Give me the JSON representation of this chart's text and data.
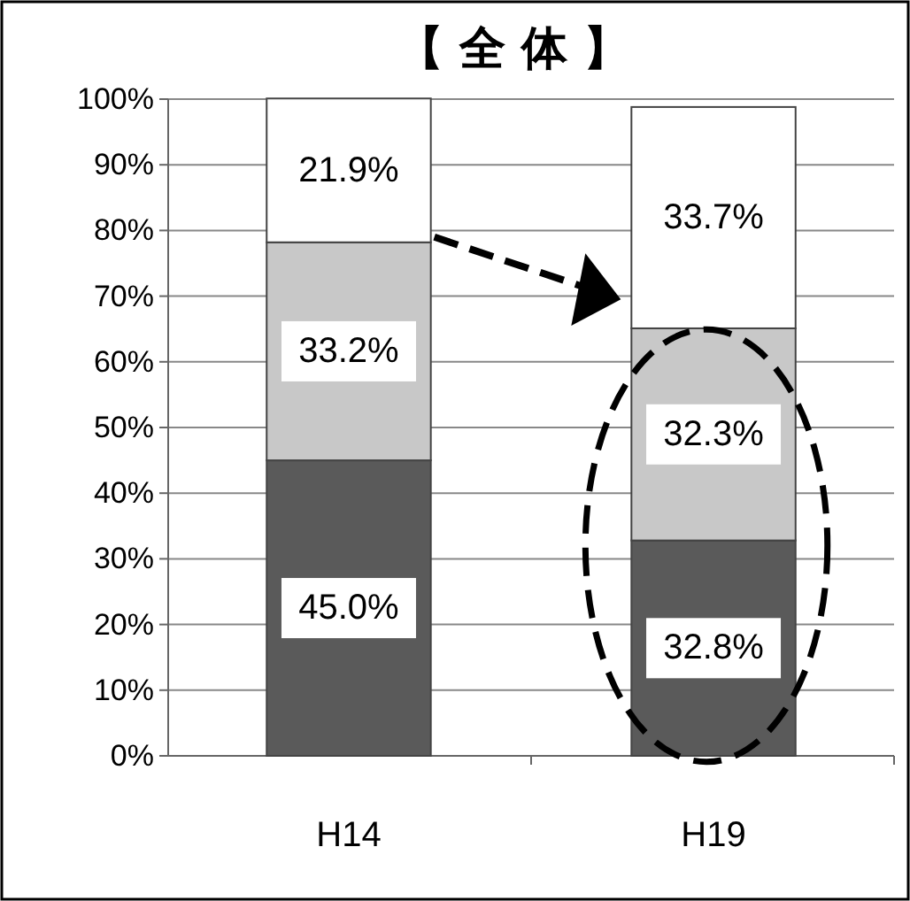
{
  "chart_data": {
    "type": "bar",
    "title": "【 全 体 】",
    "categories": [
      "H14",
      "H19"
    ],
    "stacked": true,
    "series": [
      {
        "color": "#5a5a5a",
        "values": [
          45.0,
          32.8
        ],
        "value_labels": [
          "45.0%",
          "32.8%"
        ]
      },
      {
        "color": "#c8c8c8",
        "values": [
          33.2,
          32.3
        ],
        "value_labels": [
          "33.2%",
          "32.3%"
        ]
      },
      {
        "color": "#ffffff",
        "values": [
          21.9,
          33.7
        ],
        "value_labels": [
          "21.9%",
          "33.7%"
        ]
      }
    ],
    "ylim": [
      0,
      100
    ],
    "yticks": [
      {
        "value": 0,
        "label": "0%"
      },
      {
        "value": 10,
        "label": "10%"
      },
      {
        "value": 20,
        "label": "20%"
      },
      {
        "value": 30,
        "label": "30%"
      },
      {
        "value": 40,
        "label": "40%"
      },
      {
        "value": 50,
        "label": "50%"
      },
      {
        "value": 60,
        "label": "60%"
      },
      {
        "value": 70,
        "label": "70%"
      },
      {
        "value": 80,
        "label": "80%"
      },
      {
        "value": 90,
        "label": "90%"
      },
      {
        "value": 100,
        "label": "100%"
      }
    ],
    "grid": "y"
  }
}
